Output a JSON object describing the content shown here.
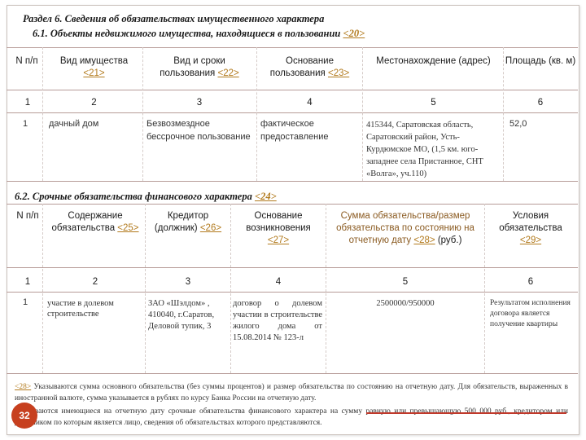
{
  "section": {
    "title": "Раздел 6. Сведения об обязательствах имущественного характера",
    "subtitle_text": "6.1. Объекты недвижимого имущества, находящиеся в пользовании ",
    "subtitle_ref": "<20>"
  },
  "table1": {
    "headers": [
      {
        "text": "N п/п",
        "ref": ""
      },
      {
        "text": "Вид имущества",
        "ref": "<21>"
      },
      {
        "text": "Вид и сроки пользования",
        "ref": "<22>"
      },
      {
        "text": "Основание пользования",
        "ref": "<23>"
      },
      {
        "text": "Местонахождение (адрес)",
        "ref": ""
      },
      {
        "text": "Площадь (кв. м)",
        "ref": ""
      }
    ],
    "col_numbers": [
      "1",
      "2",
      "3",
      "4",
      "5",
      "6"
    ],
    "row": [
      "1",
      "дачный дом",
      "Безвозмездное бессрочное пользование",
      "фактическое предоставление",
      "415344, Саратовская область, Саратовский район, Усть-Курдюмское МО, (1,5 км. юго-западнее села Пристанное, СНТ «Волга», уч.110)",
      "52,0"
    ]
  },
  "section2": {
    "title_text": "6.2. Срочные обязательства финансового характера ",
    "title_ref": "<24>"
  },
  "table2": {
    "headers": [
      {
        "text": "N п/п",
        "ref": ""
      },
      {
        "text": "Содержание обязательства",
        "ref": "<25>"
      },
      {
        "text": "Кредитор (должник)",
        "ref": "<26>"
      },
      {
        "text": "Основание возникновения",
        "ref": "<27>"
      },
      {
        "text": "Сумма обязательства/размер обязательства по состоянию на отчетную дату",
        "ref": "<28>",
        "suffix": " (руб.)"
      },
      {
        "text": "Условия обязательства",
        "ref": "<29>"
      }
    ],
    "col_numbers": [
      "1",
      "2",
      "3",
      "4",
      "5",
      "6"
    ],
    "row": [
      "1",
      "участие в долевом строительстве",
      "ЗАО «Шэлдом» , 410040, г.Саратов, Деловой тупик, 3",
      "договор о долевом участии в строительстве жилого дома от 15.08.2014 № 123-л",
      "2500000/950000",
      "Результатом исполнения договора является получение квартиры"
    ]
  },
  "footnote": {
    "ref": "<28>",
    "text": "Указываются сумма основного обязательства (без суммы процентов) и размер обязательства по состоянию на отчетную дату. Для обязательств, выраженных в иностранной валюте, сумма указывается в рублях по курсу Банка России на отчетную дату.",
    "text2": "Указываются имеющиеся на отчетную дату срочные обязательства финансового характера на сумму равную или превышающую 500 000 руб., кредитором или должником по которым является лицо, сведения об обязательствах которого представляются."
  },
  "page_number": "32",
  "colors": {
    "reference": "#b27a1d",
    "badge": "#c7401f",
    "underline": "#c0392b"
  }
}
